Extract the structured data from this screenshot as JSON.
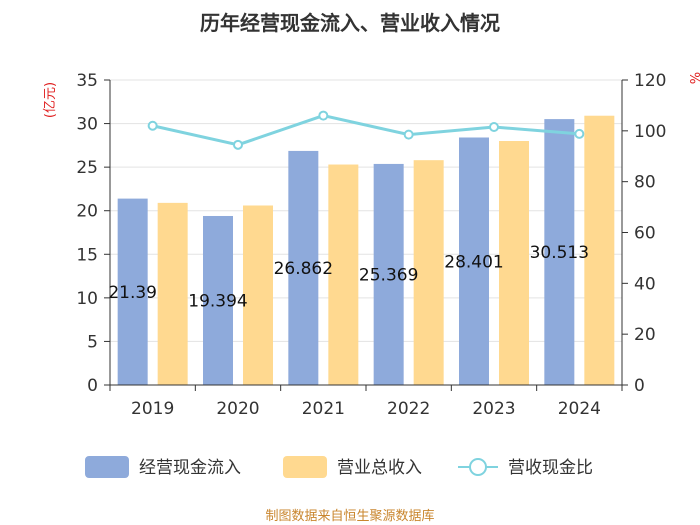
{
  "chart_data": {
    "type": "bar",
    "title": "历年经营现金流入、营业收入情况",
    "categories": [
      "2019",
      "2020",
      "2021",
      "2022",
      "2023",
      "2024"
    ],
    "y_left": {
      "unit": "(亿元)",
      "ticks": [
        "0",
        "5",
        "10",
        "15",
        "20",
        "25",
        "30",
        "35"
      ],
      "ylim": [
        0,
        35
      ]
    },
    "y_right": {
      "unit": "%",
      "ticks": [
        "0",
        "20",
        "40",
        "60",
        "80",
        "100",
        "120"
      ],
      "ylim": [
        0,
        120
      ]
    },
    "series": [
      {
        "name": "经营现金流入",
        "kind": "bar",
        "axis": "left",
        "color": "#8eaadb",
        "values": [
          21.39,
          19.394,
          26.862,
          25.369,
          28.401,
          30.513
        ],
        "labels": [
          "21.39",
          "19.394",
          "26.862",
          "25.369",
          "28.401",
          "30.513"
        ]
      },
      {
        "name": "营业总收入",
        "kind": "bar",
        "axis": "left",
        "color": "#ffd990",
        "values": [
          20.9,
          20.6,
          25.3,
          25.8,
          28.0,
          30.9
        ]
      },
      {
        "name": "营收现金比",
        "kind": "line",
        "axis": "right",
        "color": "#7fd3df",
        "values": [
          102,
          94.5,
          106,
          98.5,
          101.5,
          98.8
        ]
      }
    ],
    "grid": true,
    "legend_position": "bottom"
  },
  "footer": {
    "source": "制图数据来自恒生聚源数据库"
  }
}
